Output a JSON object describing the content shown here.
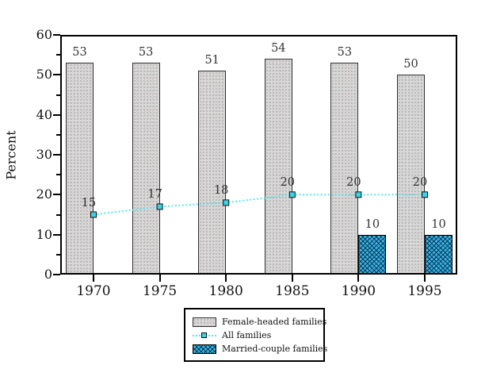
{
  "chart_data": {
    "type": "bar+line",
    "categories": [
      "1970",
      "1975",
      "1980",
      "1985",
      "1990",
      "1995"
    ],
    "series": [
      {
        "name": "Female-headed families",
        "type": "bar",
        "values": [
          53,
          53,
          51,
          54,
          53,
          50
        ]
      },
      {
        "name": "All families",
        "type": "line",
        "values": [
          15,
          17,
          18,
          20,
          20,
          20
        ]
      },
      {
        "name": "Married-couple families",
        "type": "bar",
        "values": [
          null,
          null,
          null,
          null,
          10,
          10
        ]
      }
    ],
    "title": "",
    "xlabel": "",
    "ylabel": "Percent",
    "ylim": [
      0,
      60
    ],
    "ytick_interval": 10,
    "ytick_minor_interval": 5,
    "y_ticks": [
      "0",
      "10",
      "20",
      "30",
      "40",
      "50",
      "60"
    ],
    "grid": false,
    "legend_position": "bottom-center",
    "data_labels_shown": true
  },
  "legend": {
    "items": [
      {
        "label": "Female-headed families",
        "swatch": "gray-stipple-box"
      },
      {
        "label": "All families",
        "swatch": "cyan-dotted-line-square-marker"
      },
      {
        "label": "Married-couple families",
        "swatch": "blue-crosshatch-box"
      }
    ]
  },
  "colors": {
    "background": "#ffffff",
    "axis_frame": "#000000",
    "bar_gray_fill": "#d8d8d8",
    "bar_gray_dot": "#9f9f9f",
    "bar_blue_fill": "#2cb0e2",
    "bar_blue_hatch": "#072642",
    "line_cyan": "#55e6ef",
    "marker_fill": "#3bd2e6",
    "label_text": "#333333",
    "axis_text": "#111111"
  }
}
